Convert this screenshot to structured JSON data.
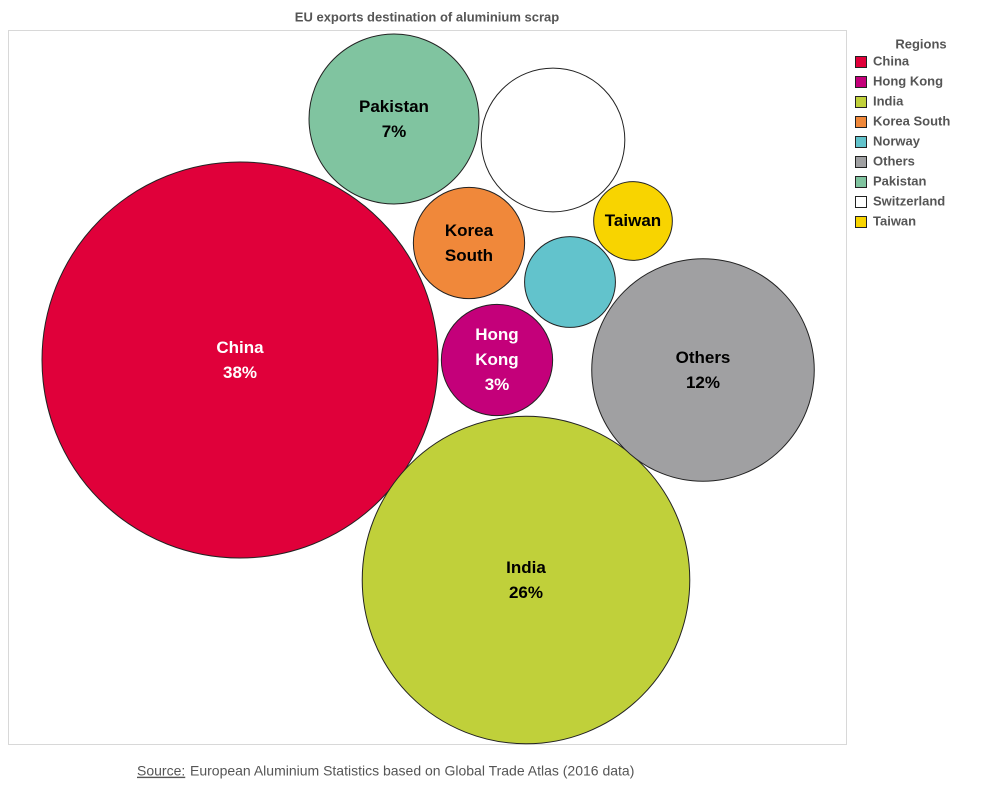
{
  "chart_data": {
    "type": "bubble",
    "title": "EU exports destination of aluminium scrap",
    "legend_title": "Regions",
    "legend_position": "right",
    "categories": [
      "China",
      "Hong Kong",
      "India",
      "Korea South",
      "Norway",
      "Others",
      "Pakistan",
      "Switzerland",
      "Taiwan"
    ],
    "values": [
      38,
      3,
      26,
      3,
      2,
      12,
      7,
      5,
      1.5
    ],
    "value_labels": [
      "38%",
      "3%",
      "26%",
      null,
      null,
      "12%",
      "7%",
      null,
      null
    ],
    "bubble_labels": [
      "China",
      "Hong Kong",
      "India",
      "Korea South",
      null,
      "Others",
      "Pakistan",
      null,
      "Taiwan"
    ],
    "colors": [
      "#e0003a",
      "#c4007a",
      "#c0d03a",
      "#f0883a",
      "#62c3cc",
      "#a0a0a2",
      "#80c4a0",
      "#ffffff",
      "#f8d400"
    ]
  },
  "source_label": "Source:",
  "source": "European Aluminium Statistics based on Global Trade Atlas (2016 data)"
}
